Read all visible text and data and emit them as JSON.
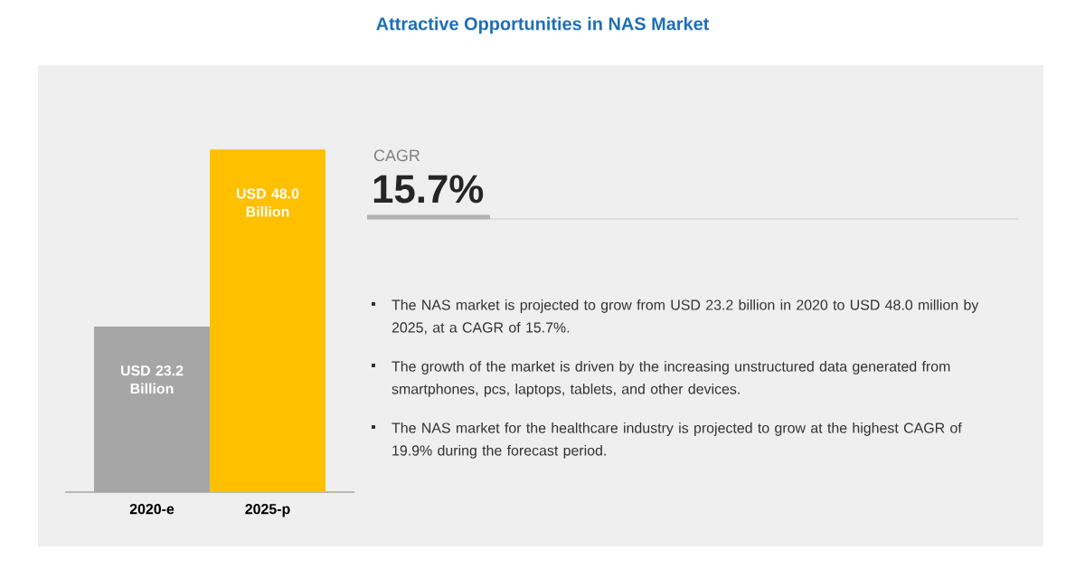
{
  "chart_data": {
    "type": "bar",
    "title": "Attractive Opportunities in NAS Market",
    "categories": [
      "2020-e",
      "2025-p"
    ],
    "values": [
      23.2,
      48.0
    ],
    "colors": [
      "#a6a6a6",
      "#ffc000"
    ],
    "value_labels": [
      "USD 23.2 Billion",
      "USD 48.0 Billion"
    ],
    "annotations": [
      "CAGR",
      "15.7%",
      "The NAS market is projected to grow from USD 23.2 billion in 2020 to USD 48.0 million by 2025, at a CAGR of 15.7%.",
      "The growth of the market is driven by the increasing unstructured data generated from smartphones, pcs, laptops, tablets, and other devices.",
      "The NAS market for the healthcare industry is projected to grow at the highest CAGR of 19.9% during the forecast period."
    ]
  }
}
